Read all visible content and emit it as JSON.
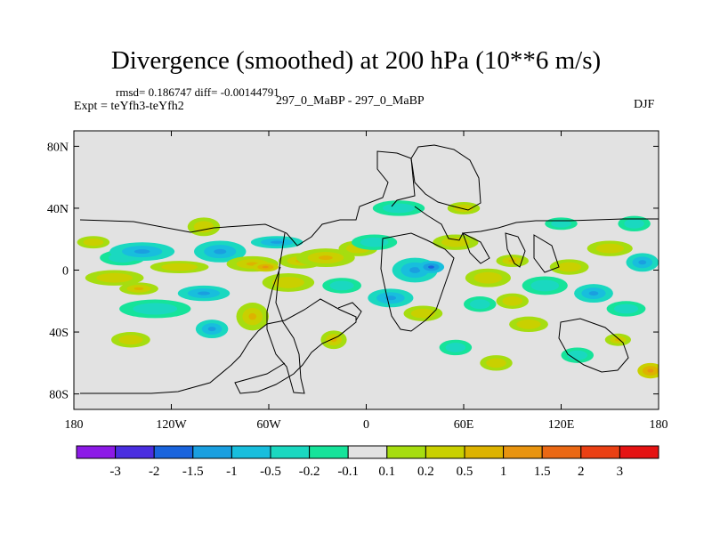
{
  "header": {
    "title": "Divergence (smoothed) at 200 hPa (10**6 m/s)",
    "rmsd_line": "rmsd= 0.186747 diff= -0.00144791",
    "expt_line": "Expt = teYfh3-teYfh2",
    "comparison": "297_0_MaBP - 297_0_MaBP",
    "season": "DJF"
  },
  "chart_data": {
    "type": "heatmap",
    "title": "Divergence (smoothed) at 200 hPa (10**6 m/s)",
    "projection": "cylindrical equidistant",
    "xlim": [
      -180,
      180
    ],
    "ylim": [
      -90,
      90
    ],
    "x_ticks": [
      {
        "value": -180,
        "label": "180"
      },
      {
        "value": -120,
        "label": "120W"
      },
      {
        "value": -60,
        "label": "60W"
      },
      {
        "value": 0,
        "label": "0"
      },
      {
        "value": 60,
        "label": "60E"
      },
      {
        "value": 120,
        "label": "120E"
      },
      {
        "value": 180,
        "label": "180"
      }
    ],
    "y_ticks": [
      {
        "value": 80,
        "label": "80N"
      },
      {
        "value": 40,
        "label": "40N"
      },
      {
        "value": 0,
        "label": "0"
      },
      {
        "value": -40,
        "label": "40S"
      },
      {
        "value": -80,
        "label": "80S"
      }
    ],
    "colorbar": {
      "colors": [
        "#8c1ae6",
        "#4a2ee0",
        "#1a64dd",
        "#1a9fe0",
        "#18bedd",
        "#1ad8c0",
        "#16e39a",
        "#e2e2e2",
        "#a6dd10",
        "#c9d000",
        "#ddb300",
        "#e89410",
        "#ea6814",
        "#ea4014",
        "#e51313"
      ],
      "labels": [
        "-3",
        "-2",
        "-1.5",
        "-1",
        "-0.5",
        "-0.2",
        "-0.1",
        "0.1",
        "0.2",
        "0.5",
        "1",
        "1.5",
        "2",
        "3"
      ]
    },
    "anomaly_blobs": [
      {
        "lon": -168,
        "lat": 18,
        "rlon": 10,
        "rlat": 4,
        "level": "pos_weak"
      },
      {
        "lon": -150,
        "lat": 8,
        "rlon": 14,
        "rlat": 5,
        "level": "neg_weak"
      },
      {
        "lon": -155,
        "lat": -5,
        "rlon": 18,
        "rlat": 5,
        "level": "pos_weak"
      },
      {
        "lon": -138,
        "lat": 12,
        "rlon": 20,
        "rlat": 6,
        "level": "neg_mid"
      },
      {
        "lon": -140,
        "lat": -12,
        "rlon": 12,
        "rlat": 4,
        "level": "pos_mid"
      },
      {
        "lon": -130,
        "lat": -25,
        "rlon": 22,
        "rlat": 6,
        "level": "neg_weak"
      },
      {
        "lon": -115,
        "lat": 2,
        "rlon": 18,
        "rlat": 4,
        "level": "pos_weak"
      },
      {
        "lon": -100,
        "lat": -15,
        "rlon": 16,
        "rlat": 5,
        "level": "neg_mid"
      },
      {
        "lon": -100,
        "lat": 28,
        "rlon": 10,
        "rlat": 6,
        "level": "pos_weak"
      },
      {
        "lon": -90,
        "lat": 12,
        "rlon": 16,
        "rlat": 7,
        "level": "neg_mid"
      },
      {
        "lon": -70,
        "lat": 4,
        "rlon": 16,
        "rlat": 5,
        "level": "pos_mid"
      },
      {
        "lon": -62,
        "lat": 2,
        "rlon": 8,
        "rlat": 3,
        "level": "pos_strong"
      },
      {
        "lon": -55,
        "lat": 18,
        "rlon": 16,
        "rlat": 4,
        "level": "neg_mid"
      },
      {
        "lon": -48,
        "lat": -8,
        "rlon": 16,
        "rlat": 6,
        "level": "pos_weak"
      },
      {
        "lon": -40,
        "lat": 6,
        "rlon": 14,
        "rlat": 5,
        "level": "pos_mid"
      },
      {
        "lon": -25,
        "lat": 8,
        "rlon": 18,
        "rlat": 6,
        "level": "pos_mid"
      },
      {
        "lon": -15,
        "lat": -10,
        "rlon": 12,
        "rlat": 5,
        "level": "neg_weak"
      },
      {
        "lon": -5,
        "lat": 14,
        "rlon": 12,
        "rlat": 5,
        "level": "pos_weak"
      },
      {
        "lon": -70,
        "lat": -30,
        "rlon": 10,
        "rlat": 9,
        "level": "pos_mid"
      },
      {
        "lon": -95,
        "lat": -38,
        "rlon": 10,
        "rlat": 6,
        "level": "neg_mid"
      },
      {
        "lon": -145,
        "lat": -45,
        "rlon": 12,
        "rlat": 5,
        "level": "pos_weak"
      },
      {
        "lon": -20,
        "lat": -45,
        "rlon": 8,
        "rlat": 6,
        "level": "pos_mid"
      },
      {
        "lon": 20,
        "lat": 40,
        "rlon": 16,
        "rlat": 5,
        "level": "neg_weak"
      },
      {
        "lon": 5,
        "lat": 18,
        "rlon": 14,
        "rlat": 5,
        "level": "neg_weak"
      },
      {
        "lon": 30,
        "lat": 0,
        "rlon": 14,
        "rlat": 8,
        "level": "neg_mid"
      },
      {
        "lon": 40,
        "lat": 2,
        "rlon": 8,
        "rlat": 4,
        "level": "neg_strong"
      },
      {
        "lon": 15,
        "lat": -18,
        "rlon": 14,
        "rlat": 6,
        "level": "neg_mid"
      },
      {
        "lon": 35,
        "lat": -28,
        "rlon": 12,
        "rlat": 5,
        "level": "pos_weak"
      },
      {
        "lon": 55,
        "lat": 18,
        "rlon": 14,
        "rlat": 5,
        "level": "pos_weak"
      },
      {
        "lon": 75,
        "lat": -5,
        "rlon": 14,
        "rlat": 6,
        "level": "pos_weak"
      },
      {
        "lon": 90,
        "lat": 6,
        "rlon": 10,
        "rlat": 4,
        "level": "pos_mid"
      },
      {
        "lon": 110,
        "lat": -10,
        "rlon": 14,
        "rlat": 6,
        "level": "neg_weak"
      },
      {
        "lon": 125,
        "lat": 2,
        "rlon": 12,
        "rlat": 5,
        "level": "pos_weak"
      },
      {
        "lon": 140,
        "lat": -15,
        "rlon": 12,
        "rlat": 6,
        "level": "neg_mid"
      },
      {
        "lon": 150,
        "lat": 14,
        "rlon": 14,
        "rlat": 5,
        "level": "pos_weak"
      },
      {
        "lon": 160,
        "lat": -25,
        "rlon": 12,
        "rlat": 5,
        "level": "neg_weak"
      },
      {
        "lon": 170,
        "lat": 5,
        "rlon": 10,
        "rlat": 6,
        "level": "neg_mid"
      },
      {
        "lon": 165,
        "lat": 30,
        "rlon": 10,
        "rlat": 5,
        "level": "neg_weak"
      },
      {
        "lon": 120,
        "lat": 30,
        "rlon": 10,
        "rlat": 4,
        "level": "neg_weak"
      },
      {
        "lon": 100,
        "lat": -35,
        "rlon": 12,
        "rlat": 5,
        "level": "pos_weak"
      },
      {
        "lon": 130,
        "lat": -55,
        "rlon": 10,
        "rlat": 5,
        "level": "neg_weak"
      },
      {
        "lon": 175,
        "lat": -65,
        "rlon": 8,
        "rlat": 5,
        "level": "pos_strong"
      },
      {
        "lon": 55,
        "lat": -50,
        "rlon": 10,
        "rlat": 5,
        "level": "neg_weak"
      },
      {
        "lon": 80,
        "lat": -60,
        "rlon": 10,
        "rlat": 5,
        "level": "pos_weak"
      },
      {
        "lon": 155,
        "lat": -45,
        "rlon": 8,
        "rlat": 4,
        "level": "pos_mid"
      },
      {
        "lon": 60,
        "lat": 40,
        "rlon": 10,
        "rlat": 4,
        "level": "pos_weak"
      },
      {
        "lon": 70,
        "lat": -22,
        "rlon": 10,
        "rlat": 5,
        "level": "neg_weak"
      },
      {
        "lon": 90,
        "lat": -20,
        "rlon": 10,
        "rlat": 5,
        "level": "pos_weak"
      }
    ]
  }
}
